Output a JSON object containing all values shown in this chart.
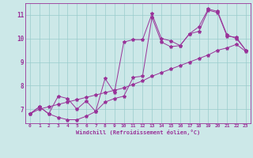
{
  "xlabel": "Windchill (Refroidissement éolien,°C)",
  "x_values": [
    0,
    1,
    2,
    3,
    4,
    5,
    6,
    7,
    8,
    9,
    10,
    11,
    12,
    13,
    14,
    15,
    16,
    17,
    18,
    19,
    20,
    21,
    22,
    23
  ],
  "line1": [
    6.8,
    7.1,
    6.8,
    6.65,
    6.55,
    6.55,
    6.7,
    6.9,
    7.3,
    7.45,
    7.55,
    8.35,
    8.4,
    10.9,
    9.85,
    9.65,
    9.7,
    10.2,
    10.3,
    11.2,
    11.1,
    10.1,
    10.05,
    9.5
  ],
  "line2": [
    6.8,
    7.1,
    6.8,
    7.55,
    7.45,
    7.0,
    7.35,
    6.9,
    8.3,
    7.7,
    9.85,
    9.95,
    9.95,
    11.05,
    10.0,
    9.9,
    9.7,
    10.2,
    10.5,
    11.25,
    11.15,
    10.15,
    10.0,
    9.5
  ],
  "line3": [
    6.8,
    7.0,
    7.1,
    7.2,
    7.3,
    7.4,
    7.5,
    7.6,
    7.7,
    7.8,
    7.9,
    8.05,
    8.2,
    8.4,
    8.55,
    8.7,
    8.85,
    9.0,
    9.15,
    9.3,
    9.5,
    9.6,
    9.75,
    9.45
  ],
  "line_color": "#993399",
  "bg_color": "#cce8e8",
  "grid_color": "#99cccc",
  "ylim": [
    6.4,
    11.5
  ],
  "xlim": [
    -0.5,
    23.5
  ],
  "yticks": [
    7,
    8,
    9,
    10,
    11
  ],
  "xticks": [
    0,
    1,
    2,
    3,
    4,
    5,
    6,
    7,
    8,
    9,
    10,
    11,
    12,
    13,
    14,
    15,
    16,
    17,
    18,
    19,
    20,
    21,
    22,
    23
  ]
}
